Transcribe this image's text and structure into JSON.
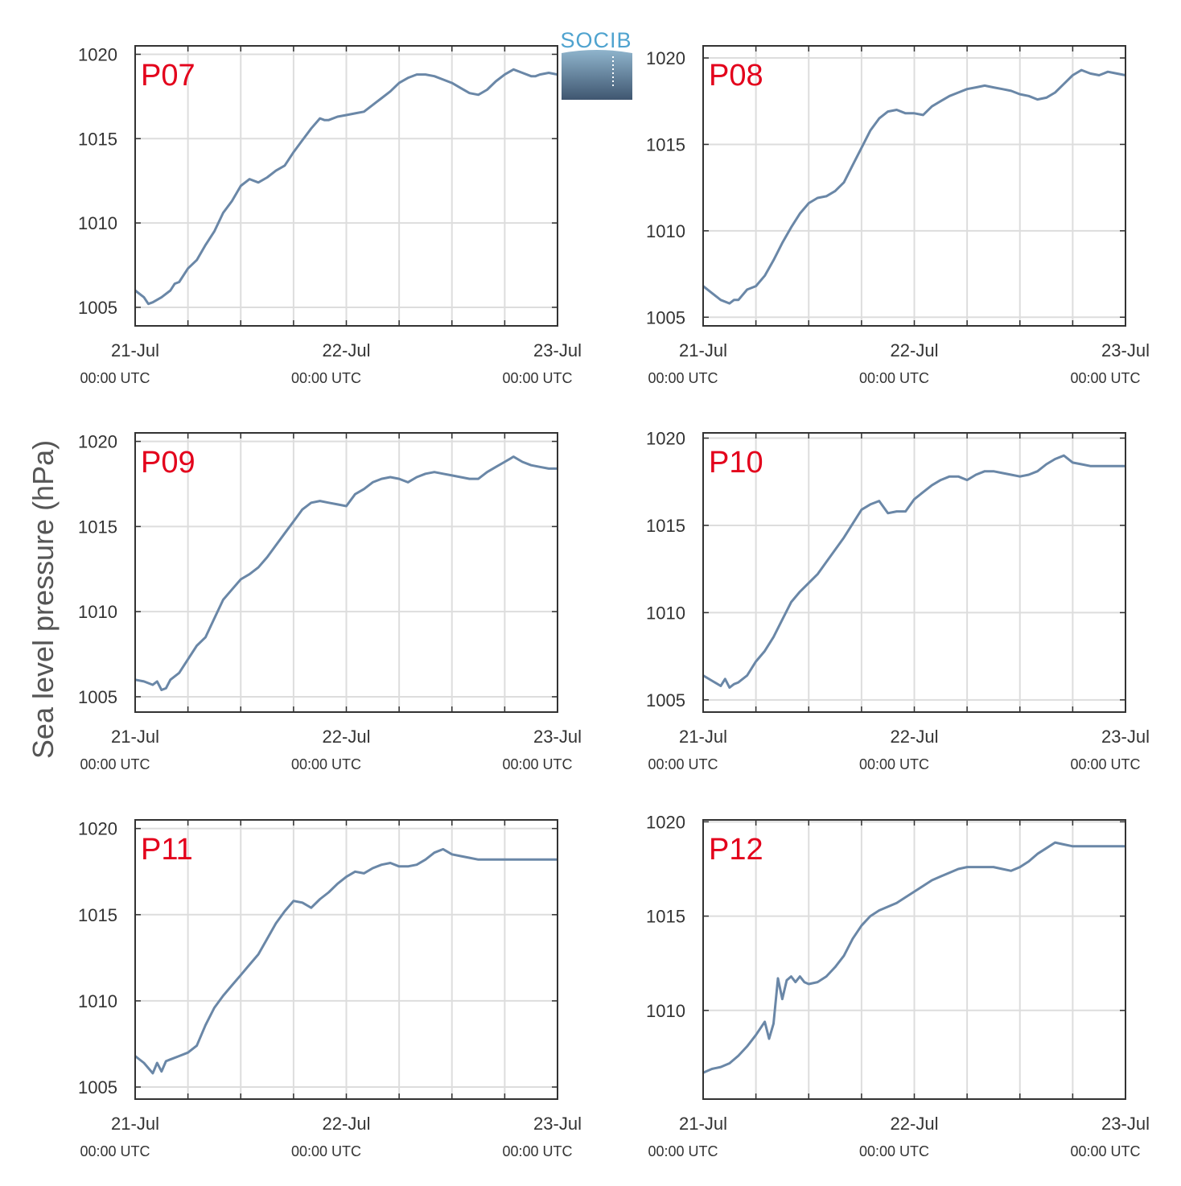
{
  "figure": {
    "ylabel": "Sea level pressure (hPa)",
    "logo_text": "SOCIB"
  },
  "colors": {
    "line": "#6a87a7",
    "label": "#e3001b",
    "grid": "#dddddd",
    "axis": "#333333"
  },
  "chart_data": [
    {
      "type": "line",
      "label": "P07",
      "ylim": [
        1003.9,
        1020.5
      ],
      "yticks": [
        1005,
        1010,
        1015,
        1020
      ],
      "xlim": [
        0,
        48
      ],
      "xticks": [
        {
          "x": 0,
          "label": "21-Jul",
          "sublabel": "00:00 UTC"
        },
        {
          "x": 24,
          "label": "22-Jul",
          "sublabel": "00:00 UTC"
        },
        {
          "x": 48,
          "label": "23-Jul",
          "sublabel": "00:00 UTC"
        }
      ],
      "grid": true,
      "x": [
        0,
        1,
        1.5,
        2,
        3,
        4,
        4.5,
        5,
        6,
        7,
        8,
        9,
        10,
        11,
        12,
        13,
        14,
        15,
        16,
        17,
        18,
        19,
        20,
        21,
        21.5,
        22,
        23,
        24,
        25,
        26,
        27,
        28,
        29,
        30,
        31,
        32,
        33,
        34,
        35,
        36,
        37,
        38,
        39,
        40,
        41,
        42,
        43,
        44,
        45,
        45.5,
        46,
        47,
        48
      ],
      "y": [
        1006.0,
        1005.6,
        1005.2,
        1005.3,
        1005.6,
        1006.0,
        1006.4,
        1006.5,
        1007.3,
        1007.8,
        1008.7,
        1009.5,
        1010.6,
        1011.3,
        1012.2,
        1012.6,
        1012.4,
        1012.7,
        1013.1,
        1013.4,
        1014.2,
        1014.9,
        1015.6,
        1016.2,
        1016.1,
        1016.1,
        1016.3,
        1016.4,
        1016.5,
        1016.6,
        1017.0,
        1017.4,
        1017.8,
        1018.3,
        1018.6,
        1018.8,
        1018.8,
        1018.7,
        1018.5,
        1018.3,
        1018.0,
        1017.7,
        1017.6,
        1017.9,
        1018.4,
        1018.8,
        1019.1,
        1018.9,
        1018.7,
        1018.7,
        1018.8,
        1018.9,
        1018.8
      ]
    },
    {
      "type": "line",
      "label": "P08",
      "ylim": [
        1004.5,
        1020.7
      ],
      "yticks": [
        1005,
        1010,
        1015,
        1020
      ],
      "xlim": [
        0,
        48
      ],
      "xticks": [
        {
          "x": 0,
          "label": "21-Jul",
          "sublabel": "00:00 UTC"
        },
        {
          "x": 24,
          "label": "22-Jul",
          "sublabel": "00:00 UTC"
        },
        {
          "x": 48,
          "label": "23-Jul",
          "sublabel": "00:00 UTC"
        }
      ],
      "grid": true,
      "x": [
        0,
        1,
        2,
        3,
        3.5,
        4,
        5,
        6,
        7,
        8,
        9,
        10,
        11,
        12,
        13,
        14,
        15,
        16,
        17,
        18,
        19,
        20,
        21,
        22,
        23,
        24,
        25,
        26,
        27,
        28,
        29,
        30,
        31,
        32,
        33,
        34,
        35,
        36,
        37,
        38,
        39,
        40,
        41,
        42,
        43,
        44,
        45,
        45.5,
        46,
        47,
        48
      ],
      "y": [
        1006.8,
        1006.4,
        1006.0,
        1005.8,
        1006.0,
        1006.0,
        1006.6,
        1006.8,
        1007.4,
        1008.3,
        1009.3,
        1010.2,
        1011.0,
        1011.6,
        1011.9,
        1012.0,
        1012.3,
        1012.8,
        1013.8,
        1014.8,
        1015.8,
        1016.5,
        1016.9,
        1017.0,
        1016.8,
        1016.8,
        1016.7,
        1017.2,
        1017.5,
        1017.8,
        1018.0,
        1018.2,
        1018.3,
        1018.4,
        1018.3,
        1018.2,
        1018.1,
        1017.9,
        1017.8,
        1017.6,
        1017.7,
        1018.0,
        1018.5,
        1019.0,
        1019.3,
        1019.1,
        1019.0,
        1019.1,
        1019.2,
        1019.1,
        1019.0
      ]
    },
    {
      "type": "line",
      "label": "P09",
      "ylim": [
        1004.1,
        1020.5
      ],
      "yticks": [
        1005,
        1010,
        1015,
        1020
      ],
      "xlim": [
        0,
        48
      ],
      "xticks": [
        {
          "x": 0,
          "label": "21-Jul",
          "sublabel": "00:00 UTC"
        },
        {
          "x": 24,
          "label": "22-Jul",
          "sublabel": "00:00 UTC"
        },
        {
          "x": 48,
          "label": "23-Jul",
          "sublabel": "00:00 UTC"
        }
      ],
      "grid": true,
      "x": [
        0,
        1,
        2,
        2.5,
        3,
        3.5,
        4,
        5,
        6,
        7,
        8,
        9,
        10,
        11,
        12,
        13,
        14,
        15,
        16,
        17,
        18,
        19,
        20,
        21,
        22,
        23,
        24,
        25,
        26,
        27,
        28,
        29,
        30,
        31,
        32,
        33,
        34,
        35,
        36,
        37,
        38,
        39,
        40,
        41,
        42,
        43,
        44,
        45,
        46,
        47,
        48
      ],
      "y": [
        1006.0,
        1005.9,
        1005.7,
        1005.9,
        1005.4,
        1005.5,
        1006.0,
        1006.4,
        1007.2,
        1008.0,
        1008.5,
        1009.6,
        1010.7,
        1011.3,
        1011.9,
        1012.2,
        1012.6,
        1013.2,
        1013.9,
        1014.6,
        1015.3,
        1016.0,
        1016.4,
        1016.5,
        1016.4,
        1016.3,
        1016.2,
        1016.9,
        1017.2,
        1017.6,
        1017.8,
        1017.9,
        1017.8,
        1017.6,
        1017.9,
        1018.1,
        1018.2,
        1018.1,
        1018.0,
        1017.9,
        1017.8,
        1017.8,
        1018.2,
        1018.5,
        1018.8,
        1019.1,
        1018.8,
        1018.6,
        1018.5,
        1018.4,
        1018.4
      ]
    },
    {
      "type": "line",
      "label": "P10",
      "ylim": [
        1004.3,
        1020.3
      ],
      "yticks": [
        1005,
        1010,
        1015,
        1020
      ],
      "xlim": [
        0,
        48
      ],
      "xticks": [
        {
          "x": 0,
          "label": "21-Jul",
          "sublabel": "00:00 UTC"
        },
        {
          "x": 24,
          "label": "22-Jul",
          "sublabel": "00:00 UTC"
        },
        {
          "x": 48,
          "label": "23-Jul",
          "sublabel": "00:00 UTC"
        }
      ],
      "grid": true,
      "x": [
        0,
        1,
        2,
        2.5,
        3,
        3.5,
        4,
        5,
        6,
        7,
        8,
        9,
        10,
        11,
        12,
        13,
        14,
        15,
        16,
        17,
        18,
        19,
        20,
        21,
        22,
        23,
        24,
        25,
        26,
        27,
        28,
        29,
        30,
        31,
        32,
        33,
        34,
        35,
        36,
        37,
        38,
        39,
        40,
        41,
        42,
        43,
        44,
        45,
        46,
        47,
        48
      ],
      "y": [
        1006.4,
        1006.1,
        1005.8,
        1006.2,
        1005.7,
        1005.9,
        1006.0,
        1006.4,
        1007.2,
        1007.8,
        1008.6,
        1009.6,
        1010.6,
        1011.2,
        1011.7,
        1012.2,
        1012.9,
        1013.6,
        1014.3,
        1015.1,
        1015.9,
        1016.2,
        1016.4,
        1015.7,
        1015.8,
        1015.8,
        1016.5,
        1016.9,
        1017.3,
        1017.6,
        1017.8,
        1017.8,
        1017.6,
        1017.9,
        1018.1,
        1018.1,
        1018.0,
        1017.9,
        1017.8,
        1017.9,
        1018.1,
        1018.5,
        1018.8,
        1019.0,
        1018.6,
        1018.5,
        1018.4,
        1018.4,
        1018.4,
        1018.4,
        1018.4
      ]
    },
    {
      "type": "line",
      "label": "P11",
      "ylim": [
        1004.3,
        1020.5
      ],
      "yticks": [
        1005,
        1010,
        1015,
        1020
      ],
      "xlim": [
        0,
        48
      ],
      "xticks": [
        {
          "x": 0,
          "label": "21-Jul",
          "sublabel": "00:00 UTC"
        },
        {
          "x": 24,
          "label": "22-Jul",
          "sublabel": "00:00 UTC"
        },
        {
          "x": 48,
          "label": "23-Jul",
          "sublabel": "00:00 UTC"
        }
      ],
      "grid": true,
      "x": [
        0,
        1,
        2,
        2.5,
        3,
        3.5,
        4,
        5,
        6,
        7,
        8,
        9,
        10,
        11,
        12,
        13,
        14,
        15,
        16,
        17,
        18,
        19,
        20,
        21,
        22,
        23,
        24,
        25,
        26,
        27,
        28,
        29,
        30,
        31,
        32,
        33,
        34,
        35,
        36,
        37,
        38,
        39,
        40,
        41,
        42,
        43,
        44,
        45,
        46,
        47,
        48
      ],
      "y": [
        1006.8,
        1006.4,
        1005.8,
        1006.4,
        1005.9,
        1006.5,
        1006.6,
        1006.8,
        1007.0,
        1007.4,
        1008.6,
        1009.6,
        1010.3,
        1010.9,
        1011.5,
        1012.1,
        1012.7,
        1013.6,
        1014.5,
        1015.2,
        1015.8,
        1015.7,
        1015.4,
        1015.9,
        1016.3,
        1016.8,
        1017.2,
        1017.5,
        1017.4,
        1017.7,
        1017.9,
        1018.0,
        1017.8,
        1017.8,
        1017.9,
        1018.2,
        1018.6,
        1018.8,
        1018.5,
        1018.4,
        1018.3,
        1018.2,
        1018.2,
        1018.2,
        1018.2,
        1018.2,
        1018.2,
        1018.2,
        1018.2,
        1018.2,
        1018.2
      ]
    },
    {
      "type": "line",
      "label": "P12",
      "ylim": [
        1005.3,
        1020.1
      ],
      "yticks": [
        1010,
        1015,
        1020
      ],
      "xlim": [
        0,
        48
      ],
      "xticks": [
        {
          "x": 0,
          "label": "21-Jul",
          "sublabel": "00:00 UTC"
        },
        {
          "x": 24,
          "label": "22-Jul",
          "sublabel": "00:00 UTC"
        },
        {
          "x": 48,
          "label": "23-Jul",
          "sublabel": "00:00 UTC"
        }
      ],
      "grid": true,
      "x": [
        0,
        1,
        2,
        3,
        4,
        5,
        6,
        7,
        7.5,
        8,
        8.5,
        9,
        9.5,
        10,
        10.5,
        11,
        11.5,
        12,
        13,
        14,
        15,
        16,
        17,
        18,
        19,
        20,
        21,
        22,
        23,
        24,
        25,
        26,
        27,
        28,
        29,
        30,
        31,
        32,
        33,
        34,
        35,
        36,
        37,
        38,
        39,
        40,
        41,
        42,
        43,
        44,
        45,
        46,
        47,
        48
      ],
      "y": [
        1006.7,
        1006.9,
        1007.0,
        1007.2,
        1007.6,
        1008.1,
        1008.7,
        1009.4,
        1008.5,
        1009.3,
        1011.7,
        1010.6,
        1011.6,
        1011.8,
        1011.5,
        1011.8,
        1011.5,
        1011.4,
        1011.5,
        1011.8,
        1012.3,
        1012.9,
        1013.8,
        1014.5,
        1015.0,
        1015.3,
        1015.5,
        1015.7,
        1016.0,
        1016.3,
        1016.6,
        1016.9,
        1017.1,
        1017.3,
        1017.5,
        1017.6,
        1017.6,
        1017.6,
        1017.6,
        1017.5,
        1017.4,
        1017.6,
        1017.9,
        1018.3,
        1018.6,
        1018.9,
        1018.8,
        1018.7,
        1018.7,
        1018.7,
        1018.7,
        1018.7,
        1018.7,
        1018.7
      ]
    }
  ]
}
